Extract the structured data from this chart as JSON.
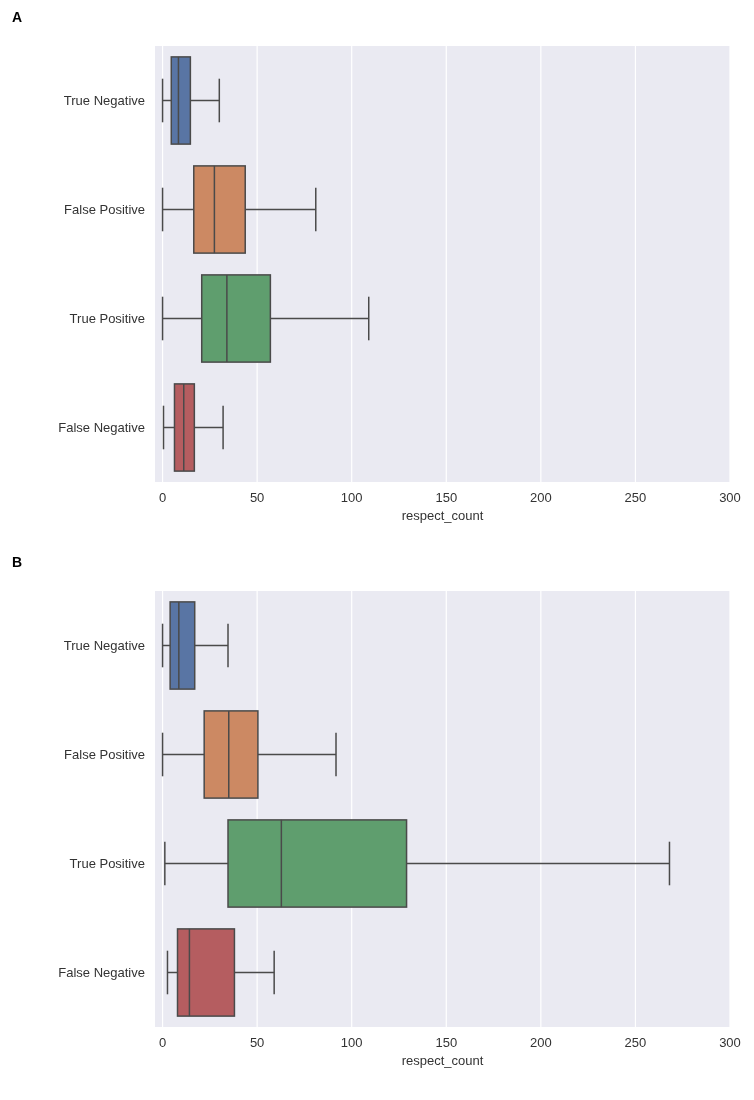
{
  "chart_data": [
    {
      "type": "box",
      "title": "A",
      "orientation": "horizontal",
      "categories": [
        "True Negative",
        "False Positive",
        "True Positive",
        "False Negative"
      ],
      "colors": [
        "#5975a4",
        "#cc8963",
        "#5f9e6e",
        "#b55d60"
      ],
      "boxes": [
        {
          "low": 0,
          "q1": 4.6,
          "median": 8.4,
          "q3": 14.7,
          "high": 30
        },
        {
          "low": 0,
          "q1": 16.5,
          "median": 27.4,
          "q3": 43.7,
          "high": 81
        },
        {
          "low": 0,
          "q1": 20.7,
          "median": 34,
          "q3": 57,
          "high": 109
        },
        {
          "low": 0.5,
          "q1": 6.3,
          "median": 11.2,
          "q3": 16.8,
          "high": 32
        }
      ],
      "xlabel": "respect_count",
      "xlim": [
        -4,
        300
      ],
      "xticks": [
        0,
        50,
        100,
        150,
        200,
        250,
        300
      ],
      "grid": "x"
    },
    {
      "type": "box",
      "title": "B",
      "orientation": "horizontal",
      "categories": [
        "True Negative",
        "False Positive",
        "True Positive",
        "False Negative"
      ],
      "colors": [
        "#5975a4",
        "#cc8963",
        "#5f9e6e",
        "#b55d60"
      ],
      "boxes": [
        {
          "low": 0,
          "q1": 4,
          "median": 8.6,
          "q3": 17,
          "high": 34.6
        },
        {
          "low": 0,
          "q1": 22,
          "median": 35,
          "q3": 50.4,
          "high": 91.7
        },
        {
          "low": 1.2,
          "q1": 34.6,
          "median": 62.8,
          "q3": 129,
          "high": 268
        },
        {
          "low": 2.6,
          "q1": 7.9,
          "median": 14.2,
          "q3": 38,
          "high": 59
        }
      ],
      "xlabel": "respect_count",
      "xlim": [
        -4,
        300
      ],
      "xticks": [
        0,
        50,
        100,
        150,
        200,
        250,
        300
      ],
      "grid": "x"
    }
  ]
}
